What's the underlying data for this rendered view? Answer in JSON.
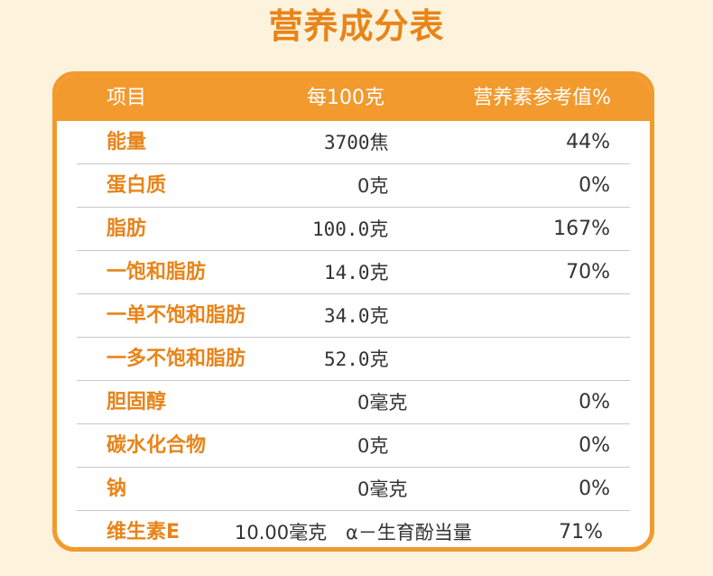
{
  "title": "营养成分表",
  "header": {
    "item": "项目",
    "per": "每100克",
    "nrv": "营养素参考值%"
  },
  "rows": [
    {
      "name": "能量",
      "amount": "3700焦",
      "nrv": "44%"
    },
    {
      "name": "蛋白质",
      "amount": "0克",
      "nrv": "0%"
    },
    {
      "name": "脂肪",
      "amount": "100.0克",
      "nrv": "167%"
    },
    {
      "name": "一饱和脂肪",
      "amount": "14.0克",
      "nrv": "70%"
    },
    {
      "name": "一单不饱和脂肪",
      "amount": "34.0克",
      "nrv": ""
    },
    {
      "name": "一多不饱和脂肪",
      "amount": "52.0克",
      "nrv": ""
    },
    {
      "name": "胆固醇",
      "amount": "0毫克",
      "nrv": "0%"
    },
    {
      "name": "碳水化合物",
      "amount": "0克",
      "nrv": "0%"
    },
    {
      "name": "钠",
      "amount": "0毫克",
      "nrv": "0%"
    },
    {
      "name": "维生素E",
      "amount": "10.00毫克",
      "extra": "α－生育酚当量",
      "nrv": "71%"
    }
  ]
}
